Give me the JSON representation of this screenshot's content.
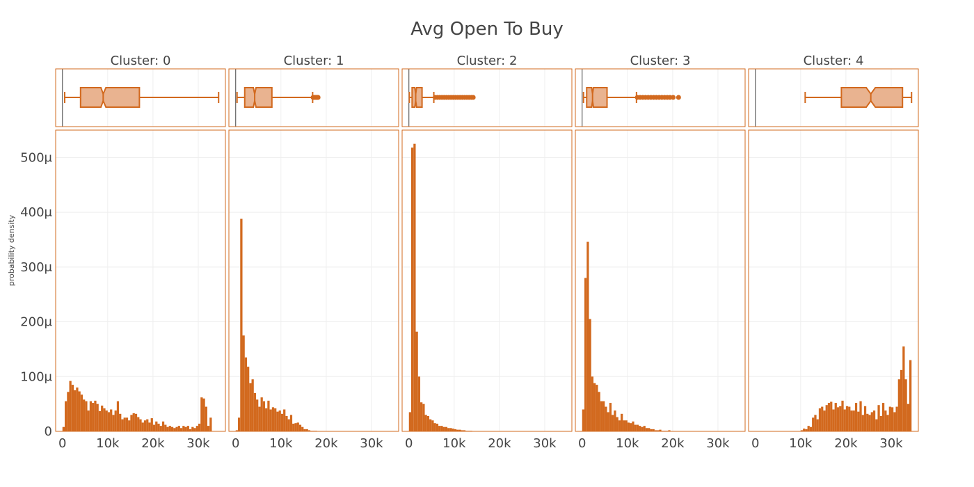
{
  "chart_data": {
    "type": "histogram",
    "title": "Avg Open To Buy",
    "ylabel": "probability density",
    "xlabel": "",
    "x_range": [
      -1500,
      36000
    ],
    "y_range": [
      0,
      0.00055
    ],
    "x_ticks": [
      {
        "value": 0,
        "label": "0"
      },
      {
        "value": 10000,
        "label": "10k"
      },
      {
        "value": 20000,
        "label": "20k"
      },
      {
        "value": 30000,
        "label": "30k"
      }
    ],
    "y_ticks": [
      {
        "value": 0,
        "label": "0"
      },
      {
        "value": 0.0001,
        "label": "100μ"
      },
      {
        "value": 0.0002,
        "label": "200μ"
      },
      {
        "value": 0.0003,
        "label": "300μ"
      },
      {
        "value": 0.0004,
        "label": "400μ"
      },
      {
        "value": 0.0005,
        "label": "500μ"
      }
    ],
    "bin_width": 500,
    "grid": true,
    "legend": "none",
    "colors": {
      "bar": "#d2691e",
      "box_fill": "#e9b390",
      "box_line": "#d2691e",
      "panel_border": "#d2691e",
      "grid": "#eeeeee",
      "zero_line": "#444444"
    },
    "panels": [
      {
        "label": "Cluster: 0",
        "box": {
          "min": 500,
          "q1": 4000,
          "median": 9000,
          "q3": 17000,
          "max": 34500,
          "notch_low": 8500,
          "notch_high": 9600,
          "outliers": []
        },
        "bins_start": 0,
        "density": [
          8,
          55,
          72,
          92,
          85,
          75,
          80,
          73,
          67,
          58,
          55,
          38,
          55,
          52,
          56,
          50,
          37,
          47,
          42,
          38,
          35,
          40,
          30,
          38,
          55,
          32,
          22,
          25,
          25,
          20,
          30,
          33,
          32,
          26,
          22,
          16,
          20,
          22,
          16,
          24,
          12,
          18,
          14,
          10,
          18,
          12,
          8,
          10,
          8,
          6,
          8,
          10,
          6,
          10,
          8,
          10,
          4,
          8,
          6,
          10,
          14,
          62,
          60,
          45,
          10,
          25
        ]
      },
      {
        "label": "Cluster: 1",
        "box": {
          "min": 300,
          "q1": 2000,
          "median": 4200,
          "q3": 8000,
          "max": 17000,
          "notch_low": 3900,
          "notch_high": 4500,
          "outliers": [
            17100,
            17300,
            17500,
            17700,
            17900,
            18100,
            18200
          ]
        },
        "bins_start": 0,
        "density": [
          2,
          25,
          388,
          175,
          135,
          118,
          88,
          95,
          70,
          58,
          45,
          62,
          55,
          42,
          56,
          40,
          44,
          42,
          36,
          38,
          32,
          40,
          28,
          22,
          30,
          14,
          15,
          16,
          12,
          8,
          4,
          4,
          2,
          1,
          1,
          1,
          0,
          0
        ]
      },
      {
        "label": "Cluster: 2",
        "box": {
          "min": 100,
          "q1": 700,
          "median": 1500,
          "q3": 2900,
          "max": 5500,
          "notch_low": 1300,
          "notch_high": 1700,
          "outliers": [
            5800,
            6300,
            6800,
            7300,
            7800,
            8300,
            8800,
            9300,
            9800,
            10300,
            10800,
            11300,
            11800,
            12300,
            12800,
            13300,
            13800,
            14200
          ]
        },
        "bins_start": 0,
        "density": [
          35,
          518,
          525,
          182,
          100,
          53,
          50,
          30,
          28,
          22,
          20,
          15,
          14,
          10,
          10,
          8,
          8,
          6,
          6,
          5,
          4,
          3,
          3,
          2,
          2,
          1,
          1,
          1,
          0,
          0
        ]
      },
      {
        "label": "Cluster: 3",
        "box": {
          "min": 300,
          "q1": 1000,
          "median": 2300,
          "q3": 5500,
          "max": 12000,
          "notch_low": 2100,
          "notch_high": 2500,
          "outliers": [
            12200,
            12800,
            13400,
            14000,
            14600,
            15200,
            15800,
            16400,
            17000,
            17600,
            18200,
            18800,
            19400,
            20100,
            21300
          ]
        },
        "bins_start": 0,
        "density": [
          40,
          280,
          346,
          205,
          100,
          88,
          85,
          72,
          55,
          55,
          45,
          35,
          52,
          30,
          38,
          26,
          20,
          32,
          20,
          20,
          16,
          15,
          18,
          12,
          12,
          10,
          8,
          10,
          6,
          6,
          4,
          4,
          2,
          2,
          3,
          1,
          1,
          1,
          2,
          0,
          0,
          0
        ]
      },
      {
        "label": "Cluster: 4",
        "box": {
          "min": 11000,
          "q1": 19000,
          "median": 25500,
          "q3": 32500,
          "max": 34500,
          "notch_low": 24500,
          "notch_high": 26500,
          "outliers": []
        },
        "bins_start": 10000,
        "density": [
          2,
          5,
          4,
          10,
          8,
          25,
          30,
          22,
          42,
          45,
          38,
          48,
          52,
          54,
          40,
          52,
          44,
          46,
          56,
          40,
          46,
          45,
          38,
          38,
          52,
          36,
          55,
          30,
          46,
          32,
          30,
          35,
          38,
          22,
          48,
          28,
          52,
          38,
          30,
          45,
          44,
          35,
          45,
          95,
          112,
          155,
          95,
          50,
          130
        ]
      }
    ]
  }
}
